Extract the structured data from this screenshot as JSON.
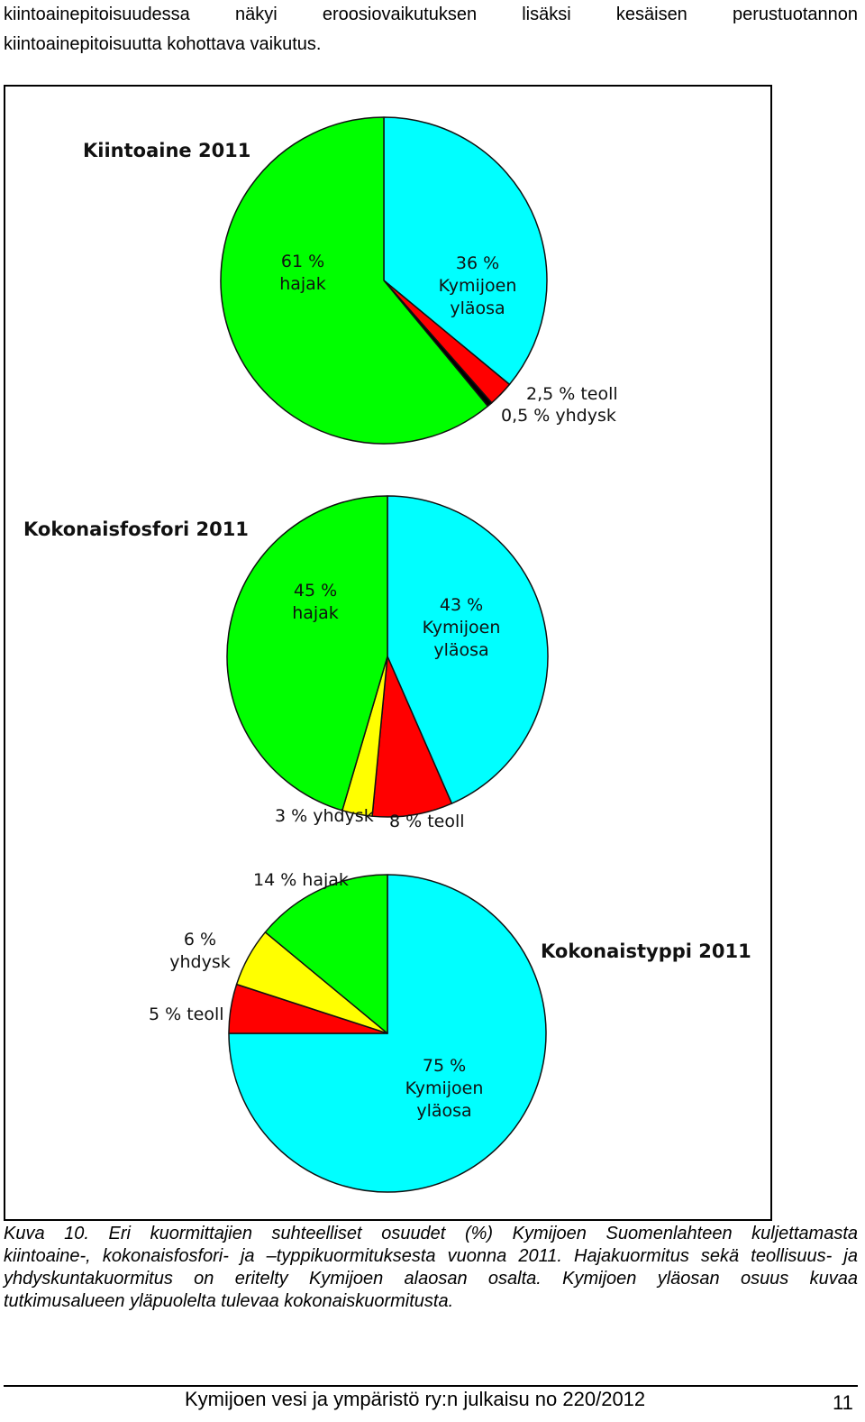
{
  "intro": {
    "line1": "kiintoainepitoisuudessa näkyi eroosiovaikutuksen lisäksi kesäisen perustuotannon",
    "line2": "kiintoainepitoisuutta kohottava vaikutus."
  },
  "colors": {
    "kymijoen_ylaosa": "#00ffff",
    "hajak": "#00ff00",
    "teoll": "#ff0000",
    "yhdysk": "#ffff00",
    "yhdysk_kiintoaine": "#000000"
  },
  "chart_data": [
    {
      "type": "pie",
      "title": "Kiintoaine 2011",
      "slices": [
        {
          "label": "Kymijoen yläosa",
          "value": 36,
          "label_lines": [
            "36 %",
            "Kymijoen",
            "yläosa"
          ],
          "color": "#00ffff"
        },
        {
          "label": "teoll",
          "value": 2.5,
          "label_lines": [
            "2,5 % teoll"
          ],
          "color": "#ff0000"
        },
        {
          "label": "yhdysk",
          "value": 0.5,
          "label_lines": [
            "0,5 % yhdysk"
          ],
          "color": "#000000"
        },
        {
          "label": "hajak",
          "value": 61,
          "label_lines": [
            "61 %",
            "hajak"
          ],
          "color": "#00ff00"
        }
      ]
    },
    {
      "type": "pie",
      "title": "Kokonaisfosfori 2011",
      "slices": [
        {
          "label": "Kymijoen yläosa",
          "value": 43,
          "label_lines": [
            "43 %",
            "Kymijoen",
            "yläosa"
          ],
          "color": "#00ffff"
        },
        {
          "label": "teoll",
          "value": 8,
          "label_lines": [
            "8 % teoll"
          ],
          "color": "#ff0000"
        },
        {
          "label": "yhdysk",
          "value": 3,
          "label_lines": [
            "3 % yhdysk"
          ],
          "color": "#ffff00"
        },
        {
          "label": "hajak",
          "value": 45,
          "label_lines": [
            "45 %",
            "hajak"
          ],
          "color": "#00ff00"
        }
      ]
    },
    {
      "type": "pie",
      "title": "Kokonaistyppi 2011",
      "slices": [
        {
          "label": "Kymijoen yläosa",
          "value": 75,
          "label_lines": [
            "75 %",
            "Kymijoen",
            "yläosa"
          ],
          "color": "#00ffff"
        },
        {
          "label": "teoll",
          "value": 5,
          "label_lines": [
            "5 % teoll"
          ],
          "color": "#ff0000"
        },
        {
          "label": "yhdysk",
          "value": 6,
          "label_lines": [
            "6 %",
            "yhdysk"
          ],
          "color": "#ffff00"
        },
        {
          "label": "hajak",
          "value": 14,
          "label_lines": [
            "14 % hajak"
          ],
          "color": "#00ff00"
        }
      ]
    }
  ],
  "caption": {
    "line1": "Kuva 10. Eri kuormittajien suhteelliset osuudet (%) Kymijoen Suomenlahteen kuljettamasta",
    "line2": "kiintoaine-, kokonaisfosfori- ja –typpikuormituksesta vuonna 2011. Hajakuormitus sekä teollisuus- ja",
    "line3": "yhdyskuntakuormitus on eritelty Kymijoen alaosan osalta. Kymijoen yläosan osuus kuvaa",
    "line4": "tutkimusalueen yläpuolelta tulevaa kokonaiskuormitusta."
  },
  "footer": {
    "text": "Kymijoen vesi ja ympäristö ry:n julkaisu no 220/2012",
    "page_number": "11"
  }
}
